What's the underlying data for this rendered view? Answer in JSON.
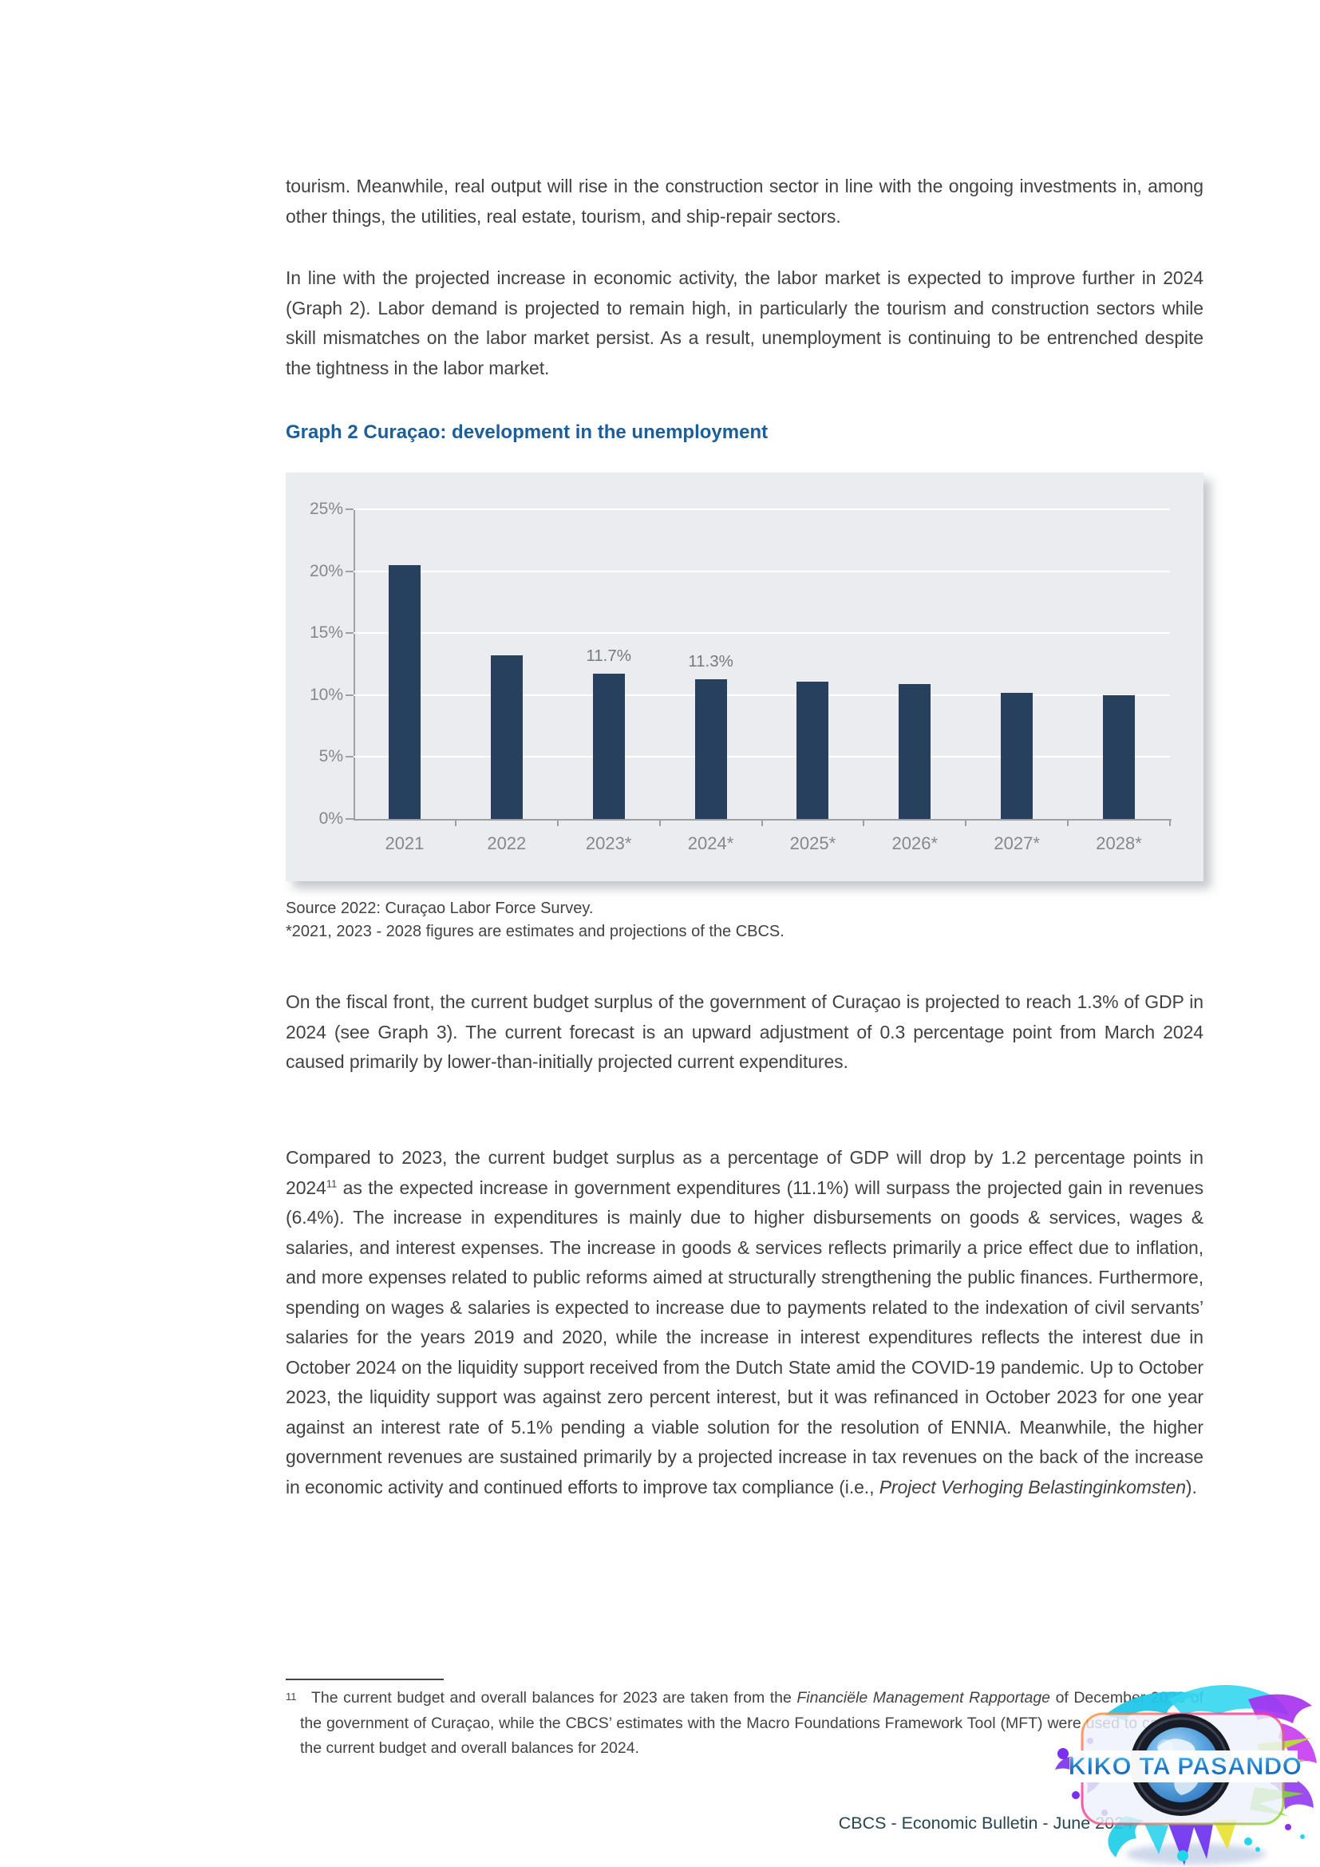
{
  "content": {
    "para1": "tourism. Meanwhile, real output will rise in the construction sector in line with the ongoing investments in, among other things, the utilities, real estate, tourism, and ship-repair sectors.",
    "para2": "In line with the projected increase in economic activity, the labor market is expected to improve further in 2024 (Graph 2). Labor demand is projected to remain high, in particularly the tourism and construction sectors while skill mismatches on the labor market persist. As a result, unemployment is continuing to be entrenched despite the tightness in the labor market.",
    "graph_title": "Graph 2 Curaçao: development in the unemployment",
    "source_line1": "Source 2022: Curaçao Labor Force Survey.",
    "source_line2": "*2021, 2023 - 2028 figures are estimates and projections of the CBCS.",
    "para3": "On the fiscal front, the current budget surplus of the government of Curaçao is projected to reach 1.3% of GDP in 2024 (see Graph 3). The current forecast is an upward adjustment of 0.3 percentage point from March 2024 caused primarily by lower-than-initially projected current expenditures.",
    "para4": {
      "pre": "Compared to 2023, the current budget surplus as a percentage of GDP will drop by 1.2 percentage points in 2024",
      "sup": "11",
      "mid": " as the expected increase in government expenditures (11.1%) will surpass the projected gain in revenues (6.4%). The increase in expenditures is mainly due to higher disbursements on goods & services, wages & salaries, and interest expenses. The increase in goods & services reflects primarily a price effect due to inflation, and more expenses related to public reforms aimed at structurally strengthening the public finances. Furthermore, spending on wages & salaries is expected to increase due to payments related to the indexation of civil servants’ salaries for the years 2019 and 2020, while the increase in interest expenditures reflects the interest due in October 2024 on the liquidity support received from the Dutch State amid the COVID-19 pandemic. Up to October 2023, the liquidity support was against zero percent interest, but it was refinanced in October 2023 for one year against an interest rate of 5.1% pending a viable solution for the resolution of ENNIA. Meanwhile, the higher government revenues are sustained primarily by a projected increase in tax revenues on the back of the increase in economic activity and continued efforts to improve tax compliance (i.e., ",
      "italic": "Project Verhoging Belastinginkomsten",
      "end": ")."
    },
    "footnote": {
      "marker": "11",
      "pre": "The current budget and overall balances for 2023 are taken from the ",
      "italic": "Financiële Management Rapportage",
      "post": " of December 2023 of the government of Curaçao, while the CBCS’ estimates with the Macro Foundations Framework Tool (MFT) were used to calculate the current budget and overall balances for 2024."
    },
    "footer": "CBCS - Economic Bulletin - June 2024",
    "logo_banner": "KIKO TA PASANDO"
  },
  "chart_data": {
    "type": "bar",
    "title": "Graph 2 Curaçao: development in the unemployment",
    "categories": [
      "2021",
      "2022",
      "2023*",
      "2024*",
      "2025*",
      "2026*",
      "2027*",
      "2028*"
    ],
    "values": [
      20.5,
      13.2,
      11.7,
      11.3,
      11.1,
      10.9,
      10.2,
      10.0
    ],
    "value_labels": [
      "",
      "",
      "11.7%",
      "11.3%",
      "",
      "",
      "",
      ""
    ],
    "xlabel": "",
    "ylabel": "",
    "ylim": [
      0,
      25
    ],
    "yticks": [
      0,
      5,
      10,
      15,
      20,
      25
    ],
    "ytick_labels": [
      "0%",
      "5%",
      "10%",
      "15%",
      "20%",
      "25%"
    ],
    "grid": true,
    "legend": false,
    "bar_color": "#27405e",
    "plot_bg": "#eaecef",
    "gridline_color": "#ffffff",
    "axis_color": "#9ca0a3",
    "tick_label_color": "#85888c",
    "value_label_color": "#77797d",
    "source_note": "Source 2022: Curaçao Labor Force Survey. *2021, 2023 - 2028 figures are estimates and projections of the CBCS."
  },
  "colors": {
    "body_text": "#414244",
    "graph_title_blue": "#1d5e99",
    "footer_text": "#27464f"
  }
}
